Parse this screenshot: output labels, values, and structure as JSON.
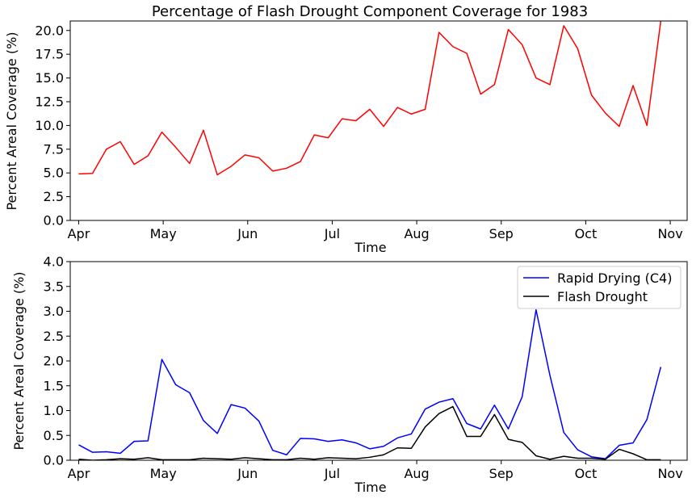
{
  "chart_data": [
    {
      "type": "line",
      "title": "Percentage of Flash Drought Component Coverage for 1983",
      "xlabel": "Time",
      "ylabel": "Percent Areal Coverage (%)",
      "xlim": [
        -0.1,
        7.2
      ],
      "ylim": [
        0,
        21
      ],
      "x_ticks": [
        0,
        1,
        2,
        3,
        4,
        5,
        6,
        7
      ],
      "x_tick_labels": [
        "Apr",
        "May",
        "Jun",
        "Jul",
        "Aug",
        "Sep",
        "Oct",
        "Nov"
      ],
      "y_ticks": [
        0,
        2.5,
        5,
        7.5,
        10,
        12.5,
        15,
        17.5,
        20
      ],
      "y_tick_labels": [
        "0.0",
        "2.5",
        "5.0",
        "7.5",
        "10.0",
        "12.5",
        "15.0",
        "17.5",
        "20.0"
      ],
      "grid": false,
      "legend": null,
      "series": [
        {
          "color": "#ff0000",
          "x": [
            0.0,
            0.164,
            0.328,
            0.492,
            0.656,
            0.82,
            0.984,
            1.148,
            1.312,
            1.476,
            1.64,
            1.804,
            1.968,
            2.132,
            2.296,
            2.46,
            2.624,
            2.788,
            2.952,
            3.116,
            3.28,
            3.444,
            3.608,
            3.772,
            3.936,
            4.1,
            4.264,
            4.428,
            4.592,
            4.756,
            4.92,
            5.084,
            5.248,
            5.412,
            5.576,
            5.74,
            5.904,
            6.068,
            6.232,
            6.396,
            6.56,
            6.724,
            6.888
          ],
          "values": [
            4.9,
            4.95,
            7.5,
            8.3,
            5.9,
            6.8,
            9.3,
            7.7,
            6.0,
            9.5,
            4.8,
            5.7,
            6.9,
            6.6,
            5.2,
            5.5,
            6.2,
            9.0,
            8.7,
            10.7,
            10.5,
            11.7,
            9.9,
            11.9,
            11.2,
            11.7,
            19.8,
            18.3,
            17.6,
            13.3,
            14.3,
            20.1,
            18.5,
            15.0,
            14.3,
            20.5,
            18.1,
            13.2,
            11.3,
            9.9,
            14.2,
            10.0,
            21.0
          ]
        }
      ]
    },
    {
      "type": "line",
      "title": "",
      "xlabel": "Time",
      "ylabel": "Percent Areal Coverage (%)",
      "xlim": [
        -0.1,
        7.2
      ],
      "ylim": [
        0,
        4
      ],
      "x_ticks": [
        0,
        1,
        2,
        3,
        4,
        5,
        6,
        7
      ],
      "x_tick_labels": [
        "Apr",
        "May",
        "Jun",
        "Jul",
        "Aug",
        "Sep",
        "Oct",
        "Nov"
      ],
      "y_ticks": [
        0,
        0.5,
        1,
        1.5,
        2,
        2.5,
        3,
        3.5,
        4
      ],
      "y_tick_labels": [
        "0.0",
        "0.5",
        "1.0",
        "1.5",
        "2.0",
        "2.5",
        "3.0",
        "3.5",
        "4.0"
      ],
      "grid": false,
      "legend": "top-right",
      "series": [
        {
          "name": "Rapid Drying (C4)",
          "color": "#0000ff",
          "x": [
            0.0,
            0.164,
            0.328,
            0.492,
            0.656,
            0.82,
            0.984,
            1.148,
            1.312,
            1.476,
            1.64,
            1.804,
            1.968,
            2.132,
            2.296,
            2.46,
            2.624,
            2.788,
            2.952,
            3.116,
            3.28,
            3.444,
            3.608,
            3.772,
            3.936,
            4.1,
            4.264,
            4.428,
            4.592,
            4.756,
            4.92,
            5.084,
            5.248,
            5.412,
            5.576,
            5.74,
            5.904,
            6.068,
            6.232,
            6.396,
            6.56,
            6.724,
            6.888
          ],
          "values": [
            0.31,
            0.16,
            0.17,
            0.14,
            0.38,
            0.39,
            2.03,
            1.52,
            1.36,
            0.8,
            0.54,
            1.12,
            1.05,
            0.79,
            0.2,
            0.11,
            0.44,
            0.43,
            0.38,
            0.41,
            0.35,
            0.23,
            0.28,
            0.45,
            0.53,
            1.03,
            1.17,
            1.24,
            0.74,
            0.63,
            1.11,
            0.63,
            1.28,
            3.03,
            1.71,
            0.56,
            0.21,
            0.07,
            0.03,
            0.3,
            0.35,
            0.82,
            1.88
          ]
        },
        {
          "name": "Flash Drought",
          "color": "#000000",
          "x": [
            0.0,
            0.164,
            0.328,
            0.492,
            0.656,
            0.82,
            0.984,
            1.148,
            1.312,
            1.476,
            1.64,
            1.804,
            1.968,
            2.132,
            2.296,
            2.46,
            2.624,
            2.788,
            2.952,
            3.116,
            3.28,
            3.444,
            3.608,
            3.772,
            3.936,
            4.1,
            4.264,
            4.428,
            4.592,
            4.756,
            4.92,
            5.084,
            5.248,
            5.412,
            5.576,
            5.74,
            5.904,
            6.068,
            6.232,
            6.396,
            6.56,
            6.724,
            6.888
          ],
          "values": [
            0.02,
            0.0,
            0.01,
            0.03,
            0.02,
            0.05,
            0.01,
            0.01,
            0.01,
            0.04,
            0.03,
            0.02,
            0.05,
            0.03,
            0.01,
            0.01,
            0.04,
            0.02,
            0.05,
            0.04,
            0.03,
            0.06,
            0.11,
            0.25,
            0.24,
            0.67,
            0.94,
            1.08,
            0.48,
            0.48,
            0.92,
            0.42,
            0.36,
            0.09,
            0.02,
            0.08,
            0.04,
            0.04,
            0.02,
            0.22,
            0.13,
            0.01,
            0.01
          ]
        }
      ]
    }
  ]
}
